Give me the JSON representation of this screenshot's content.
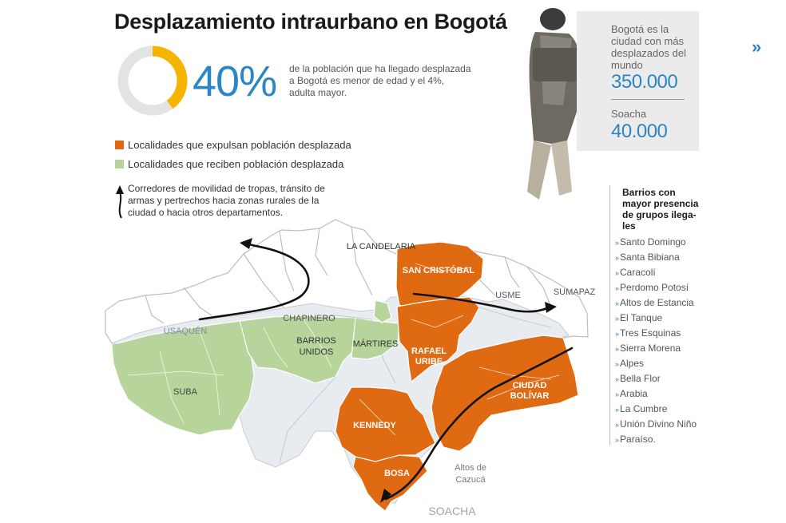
{
  "title": "Desplazamiento intraurbano en Bogotá",
  "stat_percentage": "40%",
  "stat_percentage_value": 40,
  "stat_description": "de la población que ha llegado desplazada a Bogotá es menor de edad y el 4%, adulta mayor.",
  "colors": {
    "expel": "#e06a12",
    "receive": "#b7d59a",
    "accent": "#2b86c5",
    "donut": "#f5b400",
    "donut_track": "#e3e3e3"
  },
  "legend": {
    "expel_label": "Localidades que expulsan población desplazada",
    "receive_label": "Localidades que reciben población desplazada",
    "corridor_label": "Corredores de movilidad de tropas, tránsito de armas y pertrechos hacia zonas rurales de la ciudad o hacia otros departamentos."
  },
  "sidebar": {
    "bogota_label": "Bogotá es la ciudad con más desplazados del mundo",
    "bogota_value": "350.000",
    "soacha_label": "Soacha",
    "soacha_value": "40.000"
  },
  "nav_icon": "double-chevron-right-icon",
  "barrios": {
    "title": "Barrios con mayor presencia de grupos ilegales",
    "title_lines": [
      "Barrios con",
      "mayor presencia",
      "de grupos ilega-",
      "les"
    ],
    "items": [
      "Santo Domingo",
      "Santa Bibiana",
      "Caracolí",
      "Perdomo Potosí",
      "Altos de Estancia",
      "El Tanque",
      "Tres Esquinas",
      "Sierra Morena",
      "Alpes",
      "Bella Flor",
      "Arabia",
      "La Cumbre",
      "Unión Divino Niño",
      "Paraíso."
    ]
  },
  "map_labels": {
    "usaquen": "USAQUÉN",
    "chapinero": "CHAPINERO",
    "la_candelaria": "LA CANDELARIA",
    "san_cristobal": "SAN CRISTÓBAL",
    "usme": "USME",
    "sumapaz": "SUMAPAZ",
    "barrios_unidos": "BARRIOS UNIDOS",
    "martires": "MÁRTIRES",
    "rafael_uribe": "RAFAEL URIBE",
    "suba": "SUBA",
    "ciudad_bolivar": "CIUDAD BOLÍVAR",
    "kennedy": "KENNEDY",
    "bosa": "BOSA",
    "altos_de_cazuca": "Altos de Cazucá",
    "soacha": "SOACHA"
  }
}
